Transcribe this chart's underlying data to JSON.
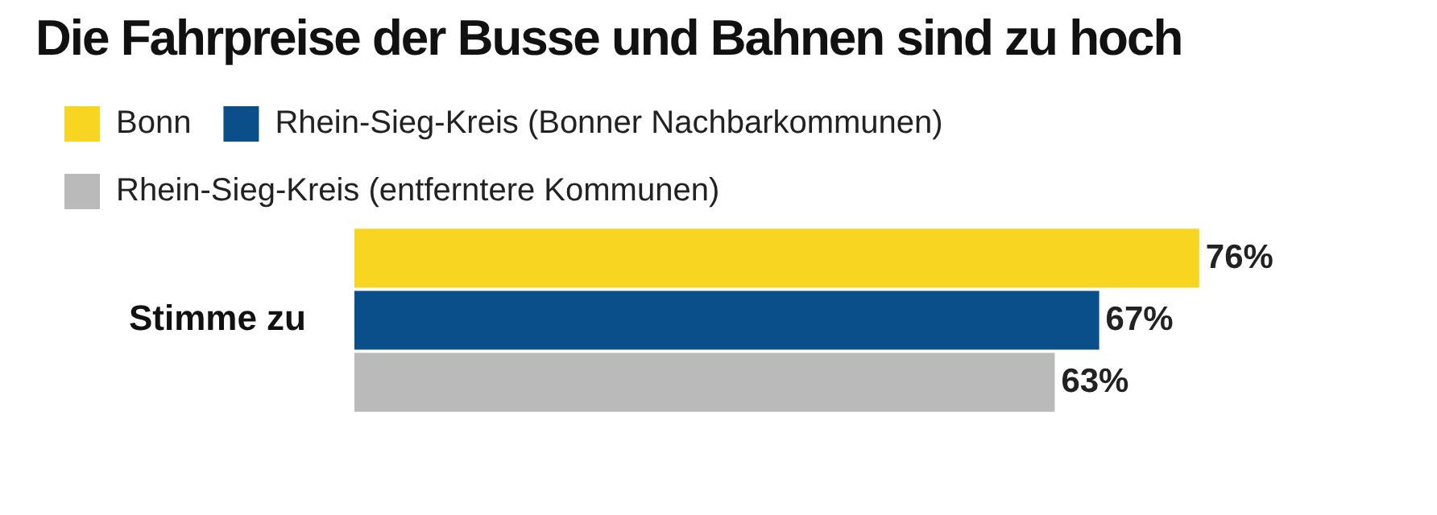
{
  "chart_data": {
    "type": "bar",
    "orientation": "horizontal",
    "title": "Die Fahrpreise der Busse und Bahnen sind zu hoch",
    "categories": [
      "Stimme zu"
    ],
    "series": [
      {
        "name": "Bonn",
        "color": "#f8d520",
        "values": [
          76
        ],
        "value_labels": [
          "76%"
        ]
      },
      {
        "name": "Rhein-Sieg-Kreis (Bonner Nachbarkommunen)",
        "color": "#0b4f8a",
        "values": [
          67
        ],
        "value_labels": [
          "67%"
        ]
      },
      {
        "name": "Rhein-Sieg-Kreis (entferntere Kommunen)",
        "color": "#bababa",
        "values": [
          63
        ],
        "value_labels": [
          "63%"
        ]
      }
    ],
    "legend": "top left",
    "grid": false
  }
}
